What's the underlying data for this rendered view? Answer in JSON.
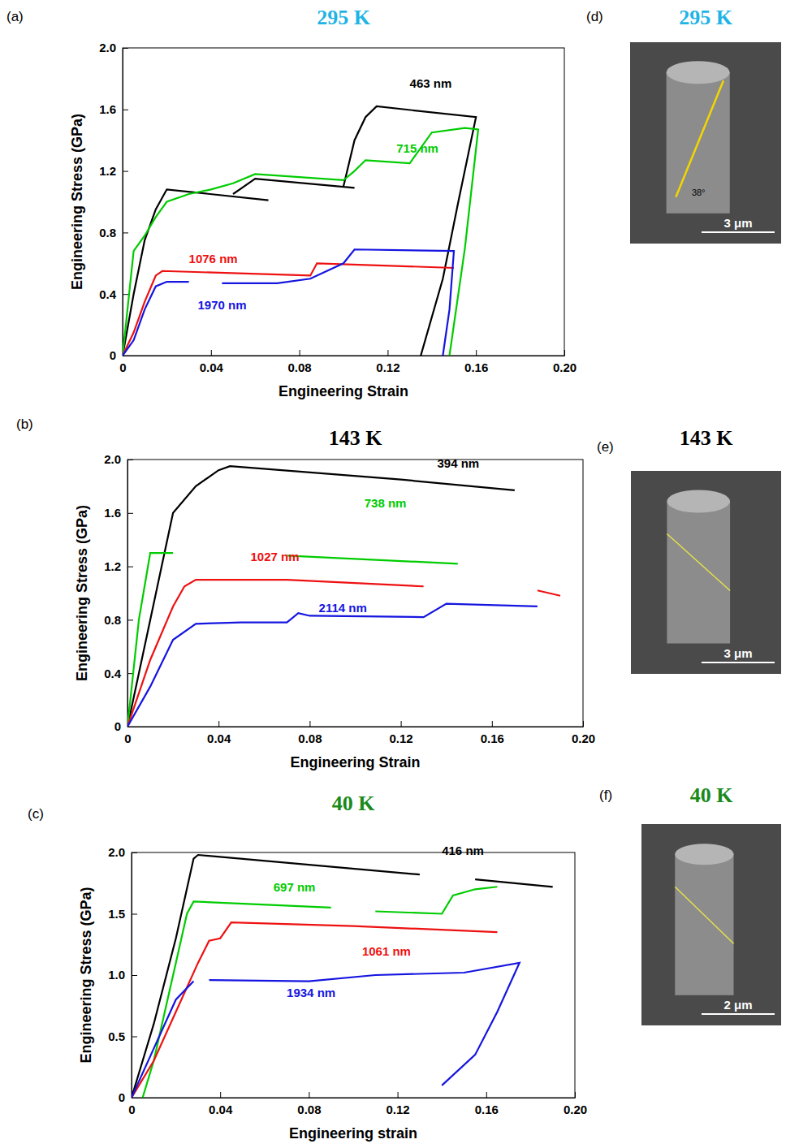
{
  "chart_data": [
    {
      "type": "line",
      "panel": "(a)",
      "title": "295 K",
      "x_label": "Engineering Strain",
      "y_label": "Engineering Stress (GPa)",
      "xlim": [
        0,
        0.2
      ],
      "ylim": [
        0,
        2
      ],
      "xticks": [
        0,
        0.04,
        0.08,
        0.12,
        0.16,
        {
          "value": 0.2,
          "label": "0.20"
        }
      ],
      "yticks": [
        0,
        0.4,
        0.8,
        1.2,
        1.6,
        {
          "value": 2,
          "label": "2.0"
        }
      ],
      "grid": false,
      "series": [
        {
          "name": "463 nm",
          "color": "#000000",
          "x": [
            0,
            0.005,
            0.01,
            0.015,
            0.02,
            0.066,
            null,
            0.05,
            0.055,
            0.06,
            0.105,
            null,
            0.1,
            0.105,
            0.11,
            0.115,
            0.16,
            0.152,
            0.145,
            0.135
          ],
          "values": [
            0,
            0.4,
            0.75,
            0.95,
            1.08,
            1.01,
            null,
            1.05,
            1.1,
            1.15,
            1.09,
            null,
            1.1,
            1.4,
            1.55,
            1.62,
            1.55,
            1.0,
            0.5,
            0
          ]
        },
        {
          "name": "715 nm",
          "color": "#00cc00",
          "x": [
            0,
            0.005,
            0.01,
            0.015,
            0.02,
            0.03,
            0.04,
            0.05,
            0.06,
            0.1,
            0.105,
            0.11,
            0.13,
            0.14,
            0.155,
            0.161,
            0.155,
            0.148
          ],
          "values": [
            0,
            0.68,
            0.78,
            0.9,
            1.0,
            1.05,
            1.08,
            1.12,
            1.18,
            1.14,
            1.2,
            1.27,
            1.25,
            1.45,
            1.48,
            1.47,
            0.7,
            0
          ]
        },
        {
          "name": "1076 nm",
          "color": "#ee1111",
          "x": [
            0,
            0.005,
            0.01,
            0.015,
            0.018,
            0.085,
            0.088,
            0.15
          ],
          "values": [
            0,
            0.15,
            0.35,
            0.52,
            0.55,
            0.52,
            0.6,
            0.57
          ]
        },
        {
          "name": "1970 nm",
          "color": "#1515e0",
          "x": [
            0,
            0.005,
            0.01,
            0.015,
            0.02,
            0.03,
            null,
            0.045,
            0.07,
            0.085,
            0.1,
            0.105,
            0.15,
            0.148,
            0.145
          ],
          "values": [
            0,
            0.1,
            0.3,
            0.45,
            0.48,
            0.48,
            null,
            0.47,
            0.47,
            0.5,
            0.6,
            0.69,
            0.68,
            0.3,
            0
          ]
        }
      ]
    },
    {
      "type": "line",
      "panel": "(b)",
      "title": "143 K",
      "x_label": "Engineering Strain",
      "y_label": "Engineering Stress (GPa)",
      "xlim": [
        0,
        0.2
      ],
      "ylim": [
        0,
        2
      ],
      "xticks": [
        0,
        0.04,
        0.08,
        0.12,
        0.16,
        {
          "value": 0.2,
          "label": "0.20"
        }
      ],
      "yticks": [
        0,
        0.4,
        0.8,
        1.2,
        1.6,
        {
          "value": 2,
          "label": "2.0"
        }
      ],
      "grid": false,
      "series": [
        {
          "name": "394 nm",
          "color": "#000000",
          "x": [
            0,
            0.005,
            0.01,
            0.015,
            0.02,
            0.03,
            0.04,
            0.045,
            0.12,
            0.17
          ],
          "values": [
            0,
            0.4,
            0.8,
            1.2,
            1.6,
            1.8,
            1.92,
            1.95,
            1.85,
            1.77
          ]
        },
        {
          "name": "738 nm",
          "color": "#00cc00",
          "x": [
            0,
            0.005,
            0.008,
            0.01,
            0.02,
            null,
            0.07,
            0.145
          ],
          "values": [
            0,
            0.8,
            1.1,
            1.3,
            1.3,
            null,
            1.28,
            1.22
          ]
        },
        {
          "name": "1027 nm",
          "color": "#ee1111",
          "x": [
            0,
            0.01,
            0.02,
            0.025,
            0.03,
            0.07,
            0.13,
            null,
            0.18,
            0.19
          ],
          "values": [
            0,
            0.5,
            0.9,
            1.05,
            1.1,
            1.1,
            1.05,
            null,
            1.02,
            0.98
          ]
        },
        {
          "name": "2114 nm",
          "color": "#1515e0",
          "x": [
            0,
            0.01,
            0.02,
            0.03,
            0.05,
            0.07,
            0.075,
            0.08,
            0.13,
            0.14,
            0.18
          ],
          "values": [
            0,
            0.3,
            0.65,
            0.77,
            0.78,
            0.78,
            0.85,
            0.83,
            0.82,
            0.92,
            0.9
          ]
        }
      ]
    },
    {
      "type": "line",
      "panel": "(c)",
      "title": "40 K",
      "x_label": "Engineering strain",
      "y_label": "Engineering Stress (GPa)",
      "xlim": [
        0,
        0.2
      ],
      "ylim": [
        0,
        2
      ],
      "xticks": [
        0,
        0.04,
        0.08,
        0.12,
        0.16,
        {
          "value": 0.2,
          "label": "0.20"
        }
      ],
      "yticks": [
        0,
        0.5,
        {
          "value": 1,
          "label": "1.0"
        },
        1.5,
        {
          "value": 2,
          "label": "2.0"
        }
      ],
      "grid": false,
      "series": [
        {
          "name": "416 nm",
          "color": "#000000",
          "x": [
            0,
            0.01,
            0.02,
            0.028,
            0.03,
            0.13,
            null,
            0.155,
            0.19
          ],
          "values": [
            0,
            0.6,
            1.3,
            1.95,
            1.98,
            1.82,
            null,
            1.78,
            1.72
          ]
        },
        {
          "name": "697 nm",
          "color": "#00cc00",
          "x": [
            0.005,
            0.01,
            0.015,
            0.02,
            0.025,
            0.028,
            0.09,
            null,
            0.11,
            0.14,
            0.145,
            0.155,
            0.165
          ],
          "values": [
            0,
            0.3,
            0.7,
            1.1,
            1.5,
            1.6,
            1.55,
            null,
            1.52,
            1.5,
            1.65,
            1.7,
            1.72
          ]
        },
        {
          "name": "1061 nm",
          "color": "#ee1111",
          "x": [
            0,
            0.01,
            0.02,
            0.03,
            0.035,
            0.04,
            0.045,
            0.1,
            0.165
          ],
          "values": [
            0,
            0.3,
            0.7,
            1.1,
            1.28,
            1.3,
            1.43,
            1.4,
            1.35
          ]
        },
        {
          "name": "1934 nm",
          "color": "#1515e0",
          "x": [
            0,
            0.01,
            0.02,
            0.028,
            null,
            0.035,
            0.08,
            0.11,
            0.15,
            0.175,
            0.165,
            0.155,
            0.14
          ],
          "values": [
            0,
            0.4,
            0.8,
            0.95,
            null,
            0.96,
            0.95,
            1.0,
            1.02,
            1.1,
            0.7,
            0.35,
            0.1
          ]
        }
      ]
    }
  ],
  "images": [
    {
      "panel": "(d)",
      "title": "295 K",
      "scale_bar": "3 μm",
      "angle": "38°"
    },
    {
      "panel": "(e)",
      "title": "143 K",
      "scale_bar": "3 μm"
    },
    {
      "panel": "(f)",
      "title": "40 K",
      "scale_bar": "2 μm"
    }
  ]
}
